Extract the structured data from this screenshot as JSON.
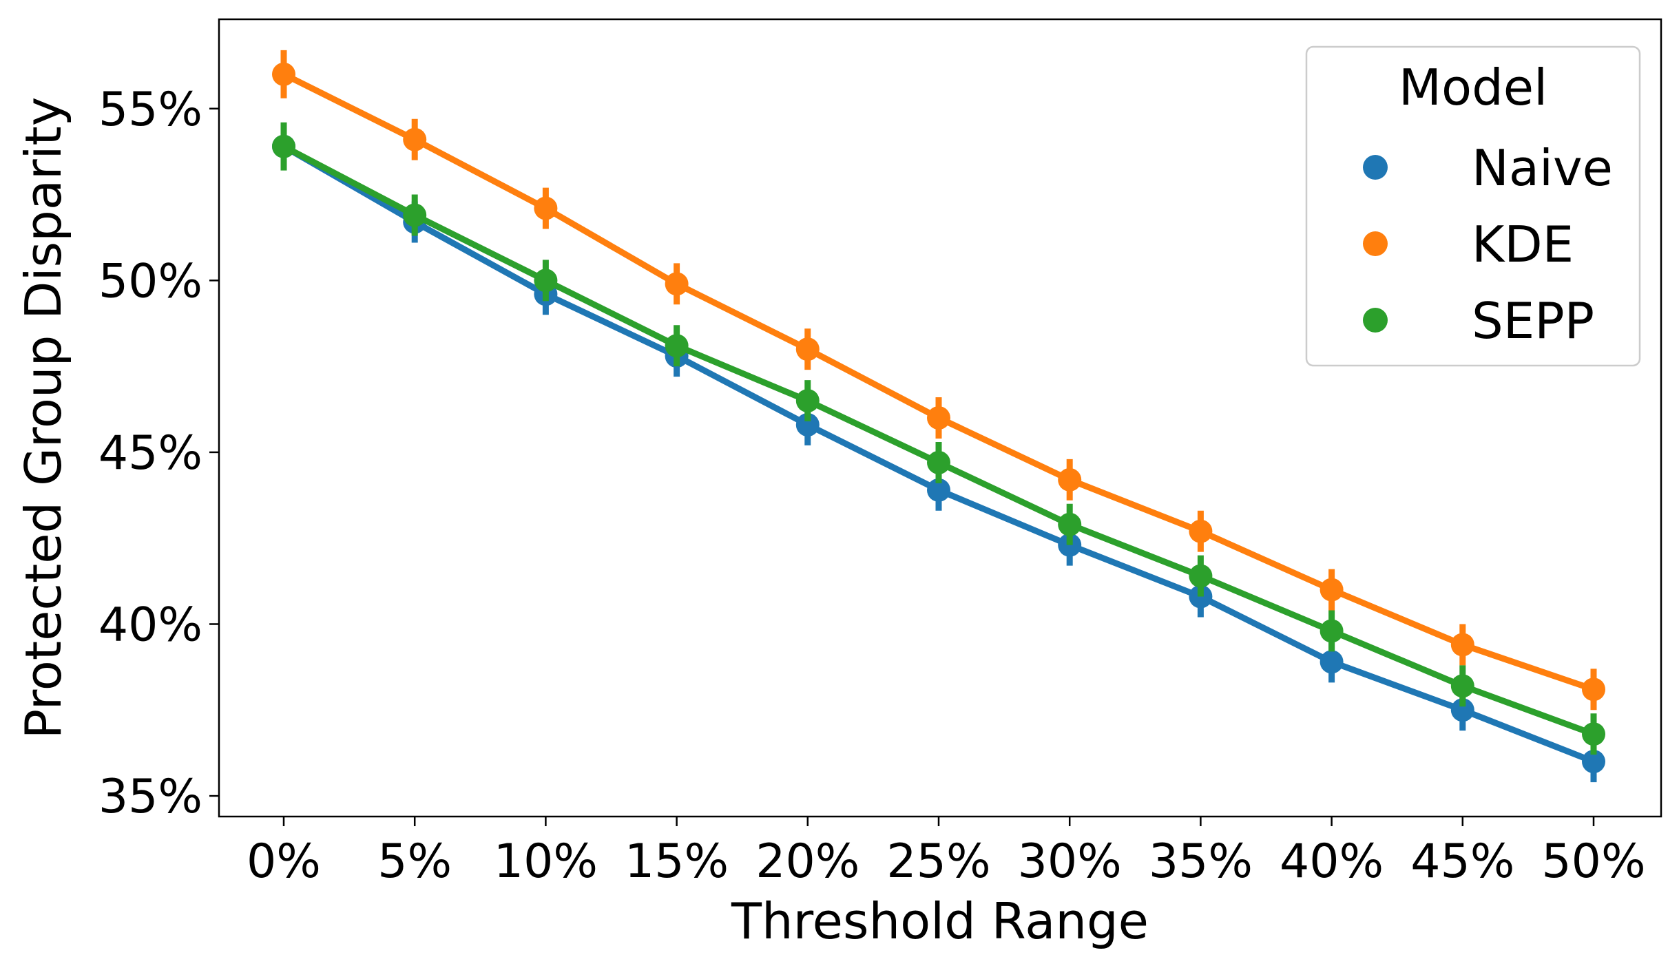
{
  "chart_data": {
    "type": "line",
    "title": "",
    "xlabel": "Threshold Range",
    "ylabel": "Protected Group Disparity",
    "categories": [
      "0%",
      "5%",
      "10%",
      "15%",
      "20%",
      "25%",
      "30%",
      "35%",
      "40%",
      "45%",
      "50%"
    ],
    "ylim": [
      34.4,
      57.6
    ],
    "yticks": [
      35,
      40,
      45,
      50,
      55
    ],
    "ytick_labels": [
      "35%",
      "40%",
      "45%",
      "50%",
      "55%"
    ],
    "y_unit": "%",
    "grid": false,
    "legend": {
      "title": "Model",
      "placement": "top-right"
    },
    "error_bars": true,
    "series": [
      {
        "name": "Naive",
        "color": "#1f77b4",
        "values": [
          53.9,
          51.7,
          49.6,
          47.8,
          45.8,
          43.9,
          42.3,
          40.8,
          38.9,
          37.5,
          36.0
        ],
        "err": [
          0.6,
          0.6,
          0.6,
          0.6,
          0.6,
          0.6,
          0.6,
          0.6,
          0.6,
          0.6,
          0.6
        ]
      },
      {
        "name": "KDE",
        "color": "#ff7f0e",
        "values": [
          56.0,
          54.1,
          52.1,
          49.9,
          48.0,
          46.0,
          44.2,
          42.7,
          41.0,
          39.4,
          38.1
        ],
        "err": [
          0.7,
          0.6,
          0.6,
          0.6,
          0.6,
          0.6,
          0.6,
          0.6,
          0.6,
          0.6,
          0.6
        ]
      },
      {
        "name": "SEPP",
        "color": "#2ca02c",
        "values": [
          53.9,
          51.9,
          50.0,
          48.1,
          46.5,
          44.7,
          42.9,
          41.4,
          39.8,
          38.2,
          36.8
        ],
        "err": [
          0.7,
          0.6,
          0.6,
          0.6,
          0.6,
          0.6,
          0.6,
          0.6,
          0.6,
          0.6,
          0.6
        ]
      }
    ]
  }
}
